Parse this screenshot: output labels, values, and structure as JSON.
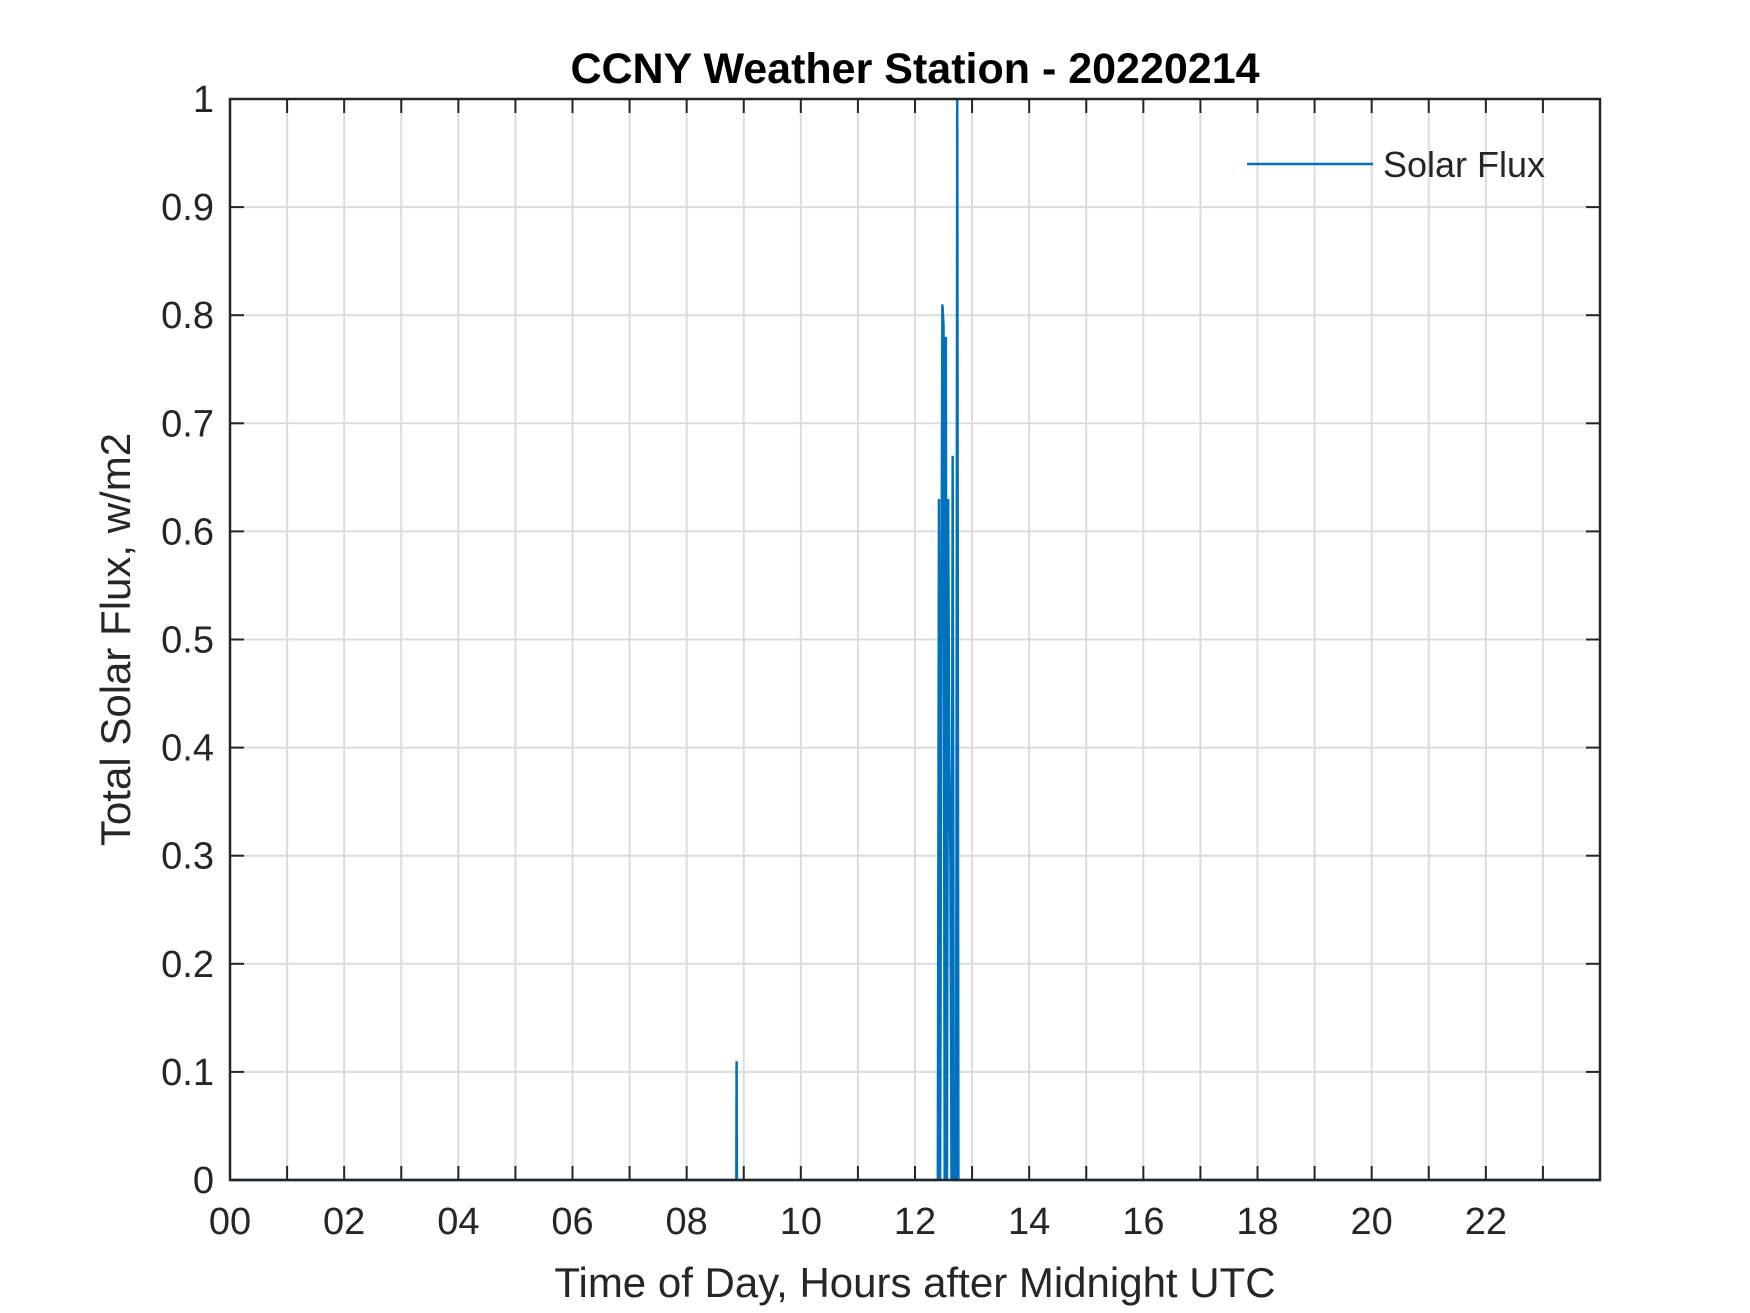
{
  "chart_data": {
    "type": "line",
    "title": "CCNY Weather Station - 20220214",
    "xlabel": "Time of Day, Hours after Midnight UTC",
    "ylabel": "Total Solar Flux, w/m2",
    "xlim": [
      0,
      24
    ],
    "ylim": [
      0,
      1
    ],
    "x_ticks": [
      0,
      2,
      4,
      6,
      8,
      10,
      12,
      14,
      16,
      18,
      20,
      22
    ],
    "x_tick_labels": [
      "00",
      "02",
      "04",
      "06",
      "08",
      "10",
      "12",
      "14",
      "16",
      "18",
      "20",
      "22"
    ],
    "x_minor_ticks": [
      1,
      3,
      5,
      7,
      9,
      11,
      13,
      15,
      17,
      19,
      21,
      23
    ],
    "y_ticks": [
      0,
      0.1,
      0.2,
      0.3,
      0.4,
      0.5,
      0.6,
      0.7,
      0.8,
      0.9,
      1
    ],
    "y_tick_labels": [
      "0",
      "0.1",
      "0.2",
      "0.3",
      "0.4",
      "0.5",
      "0.6",
      "0.7",
      "0.8",
      "0.9",
      "1"
    ],
    "grid": true,
    "legend_position": "top-right",
    "series": [
      {
        "name": "Solar Flux",
        "color": "#0072BD",
        "x": [
          0,
          8.87,
          8.875,
          8.88,
          12.4,
          12.42,
          12.44,
          12.46,
          12.48,
          12.5,
          12.52,
          12.54,
          12.56,
          12.58,
          12.6,
          12.62,
          12.64,
          12.66,
          12.68,
          12.7,
          12.72,
          12.74,
          12.76,
          12.78,
          12.8,
          24
        ],
        "y": [
          0,
          0,
          0.11,
          0,
          0,
          0.63,
          0,
          0.46,
          0.81,
          0.79,
          0,
          0.78,
          0,
          0.63,
          0.39,
          0.3,
          0,
          0.67,
          0,
          0,
          0,
          1.0,
          0,
          0,
          0,
          0
        ]
      }
    ]
  }
}
